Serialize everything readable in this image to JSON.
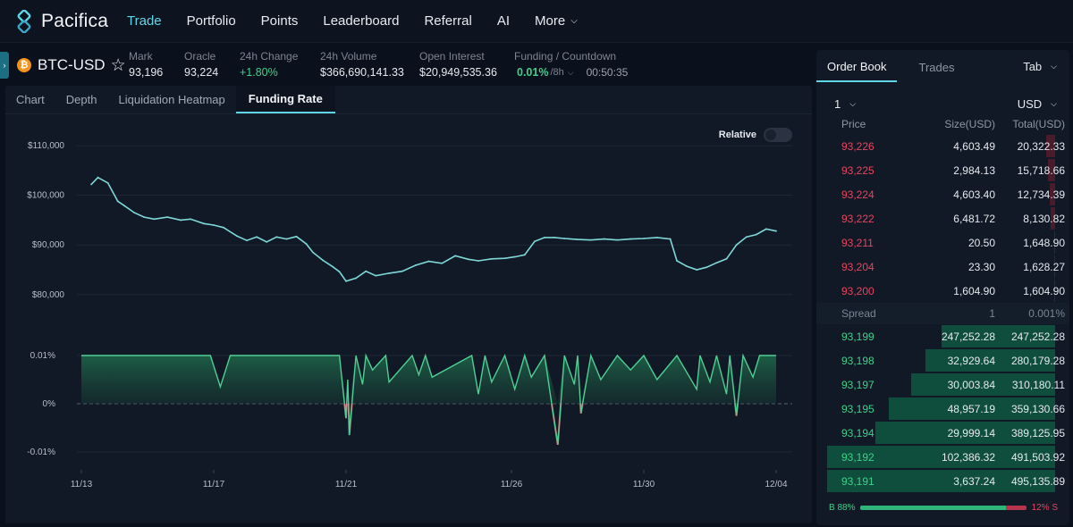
{
  "app": {
    "logo_text": "Pacifica",
    "nav": [
      {
        "label": "Trade",
        "active": true
      },
      {
        "label": "Portfolio"
      },
      {
        "label": "Points"
      },
      {
        "label": "Leaderboard"
      },
      {
        "label": "Referral"
      },
      {
        "label": "AI"
      },
      {
        "label": "More"
      }
    ]
  },
  "ticker": {
    "symbol": "BTC-USD",
    "stats": [
      {
        "label": "Mark",
        "value": "93,196"
      },
      {
        "label": "Oracle",
        "value": "93,224"
      },
      {
        "label": "24h Change",
        "value": "+1.80%"
      },
      {
        "label": "24h Volume",
        "value": "$366,690,141.33"
      },
      {
        "label": "Open Interest",
        "value": "$20,949,535.36"
      }
    ],
    "funding": {
      "label": "Funding / Countdown",
      "rate": "0.01%",
      "period": "/8h",
      "countdown": "00:50:35"
    }
  },
  "chart_tabs": [
    {
      "label": "Chart"
    },
    {
      "label": "Depth"
    },
    {
      "label": "Liquidation Heatmap"
    },
    {
      "label": "Funding Rate",
      "active": true
    }
  ],
  "relative_label": "Relative",
  "chart_data": [
    {
      "type": "line",
      "ylim": [
        76000,
        112000
      ],
      "y_ticks": [
        "$110,000",
        "$100,000",
        "$90,000",
        "$80,000"
      ],
      "x_ticks": [
        "11/13",
        "11/17",
        "11/21",
        "11/26",
        "11/30",
        "12/04"
      ],
      "x_days": [
        0,
        4,
        8,
        13,
        17,
        21
      ],
      "color": "#7fd8d8",
      "x": [
        0.3,
        0.5,
        0.8,
        1.1,
        1.3,
        1.6,
        1.9,
        2.2,
        2.6,
        3.0,
        3.3,
        3.7,
        4.0,
        4.3,
        4.7,
        5.0,
        5.3,
        5.6,
        5.9,
        6.2,
        6.5,
        6.8,
        7.0,
        7.3,
        7.6,
        7.8,
        8.0,
        8.3,
        8.6,
        8.9,
        9.3,
        9.7,
        10.1,
        10.5,
        10.9,
        11.3,
        11.7,
        12.0,
        12.4,
        12.8,
        13.1,
        13.4,
        13.7,
        14.0,
        14.3,
        14.6,
        15.0,
        15.4,
        15.8,
        16.2,
        16.6,
        17.0,
        17.4,
        17.8,
        18.0,
        18.3,
        18.6,
        18.9,
        19.2,
        19.5,
        19.8,
        20.1,
        20.4,
        20.7,
        21.0
      ],
      "y": [
        102200,
        103600,
        102500,
        98800,
        97900,
        96500,
        95600,
        95200,
        95600,
        95000,
        95200,
        94300,
        94000,
        93500,
        91800,
        90900,
        91600,
        90600,
        91600,
        91200,
        91700,
        90200,
        88500,
        86900,
        85600,
        84600,
        82700,
        83300,
        84700,
        83800,
        84300,
        84700,
        85900,
        86700,
        86300,
        87800,
        87100,
        86800,
        87200,
        87300,
        87600,
        88000,
        90700,
        91500,
        91500,
        91300,
        91100,
        91000,
        91200,
        91000,
        91200,
        91300,
        91500,
        91200,
        86800,
        85700,
        85000,
        85500,
        86400,
        87200,
        90000,
        91600,
        92100,
        93200,
        92800
      ]
    },
    {
      "type": "area",
      "y_ticks": [
        "0.01%",
        "0%",
        "-0.01%"
      ],
      "ylim": [
        -0.012,
        0.012
      ],
      "color": "#4fcf93",
      "negative_color": "#e6455f",
      "x": [
        0,
        3.9,
        4.2,
        4.5,
        7.8,
        8.0,
        8.05,
        8.1,
        8.3,
        8.5,
        8.6,
        8.8,
        9.2,
        9.3,
        10.0,
        10.2,
        10.4,
        10.6,
        11.8,
        12.0,
        12.2,
        12.4,
        12.8,
        13.1,
        13.4,
        13.6,
        14.0,
        14.4,
        14.6,
        14.9,
        15.0,
        15.1,
        15.4,
        15.7,
        16.2,
        16.6,
        17.0,
        17.4,
        18.0,
        18.6,
        18.7,
        19.0,
        19.2,
        19.5,
        19.6,
        19.8,
        20.0,
        20.3,
        20.5,
        21.0
      ],
      "y": [
        0.01,
        0.01,
        0.0035,
        0.01,
        0.01,
        -0.003,
        0.005,
        -0.0065,
        0.01,
        0.004,
        0.01,
        0.007,
        0.01,
        0.0045,
        0.01,
        0.006,
        0.01,
        0.0055,
        0.01,
        0.002,
        0.01,
        0.0045,
        0.01,
        0.003,
        0.01,
        0.0055,
        0.01,
        -0.0085,
        0.01,
        0.004,
        0.01,
        -0.002,
        0.01,
        0.005,
        0.01,
        0.007,
        0.01,
        0.005,
        0.01,
        0.003,
        0.01,
        0.0045,
        0.01,
        0.002,
        0.01,
        -0.0025,
        0.01,
        0.0055,
        0.01,
        0.01
      ]
    }
  ],
  "orderbook": {
    "tabs": [
      {
        "label": "Order Book",
        "active": true
      },
      {
        "label": "Trades"
      }
    ],
    "tab_select": "Tab",
    "tick": "1",
    "currency": "USD",
    "headers": {
      "price": "Price",
      "size": "Size(USD)",
      "total": "Total(USD)"
    },
    "asks": [
      {
        "price": "93,226",
        "size": "4,603.49",
        "total": "20,322.33",
        "depth": 0.04
      },
      {
        "price": "93,225",
        "size": "2,984.13",
        "total": "15,718.66",
        "depth": 0.03
      },
      {
        "price": "93,224",
        "size": "4,603.40",
        "total": "12,734.39",
        "depth": 0.025
      },
      {
        "price": "93,222",
        "size": "6,481.72",
        "total": "8,130.82",
        "depth": 0.02
      },
      {
        "price": "93,211",
        "size": "20.50",
        "total": "1,648.90",
        "depth": 0.005
      },
      {
        "price": "93,204",
        "size": "23.30",
        "total": "1,628.27",
        "depth": 0.005
      },
      {
        "price": "93,200",
        "size": "1,604.90",
        "total": "1,604.90",
        "depth": 0.004
      }
    ],
    "spread": {
      "label": "Spread",
      "value": "1",
      "pct": "0.001%"
    },
    "bids": [
      {
        "price": "93,199",
        "size": "247,252.28",
        "total": "247,252.28",
        "depth": 0.5
      },
      {
        "price": "93,198",
        "size": "32,929.64",
        "total": "280,179.28",
        "depth": 0.57
      },
      {
        "price": "93,197",
        "size": "30,003.84",
        "total": "310,180.11",
        "depth": 0.63
      },
      {
        "price": "93,195",
        "size": "48,957.19",
        "total": "359,130.66",
        "depth": 0.73
      },
      {
        "price": "93,194",
        "size": "29,999.14",
        "total": "389,125.95",
        "depth": 0.79
      },
      {
        "price": "93,192",
        "size": "102,386.32",
        "total": "491,503.92",
        "depth": 1.0
      },
      {
        "price": "93,191",
        "size": "3,637.24",
        "total": "495,135.89",
        "depth": 1.0
      }
    ],
    "ratio": {
      "buy_label": "B 88%",
      "sell_label": "12% S",
      "buy": 0.88
    }
  }
}
